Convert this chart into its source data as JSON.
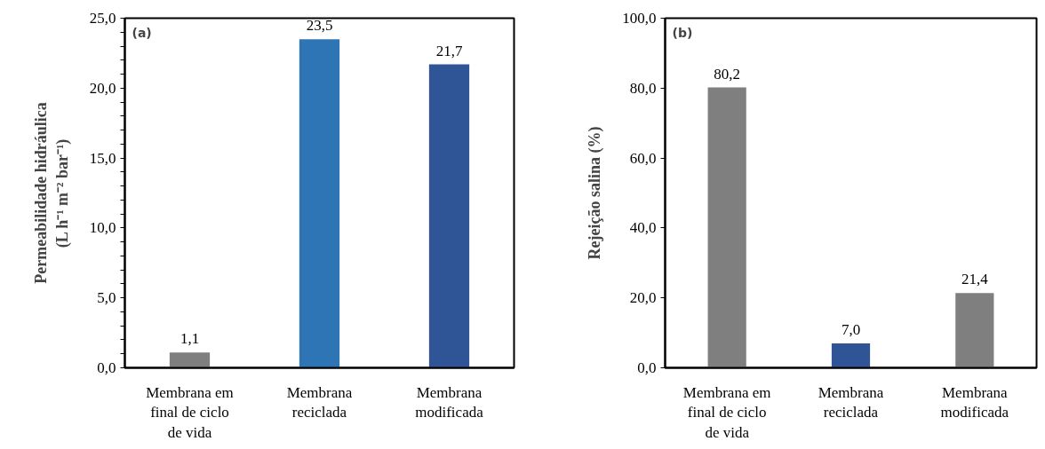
{
  "chart_data": [
    {
      "type": "bar",
      "ylabel": "Permeabilidade hidráulica\n(L h⁻¹ m⁻² bar⁻¹)",
      "annotations": [
        "(a)"
      ],
      "categories": [
        "Membrana em\nfinal de ciclo\nde vida",
        "Membrana\nreciclada",
        "Membrana\nmodificada"
      ],
      "values": [
        1.1,
        23.5,
        21.7
      ],
      "colors": [
        "#7f7f7f",
        "#2e75b6",
        "#2f5597"
      ],
      "value_labels": [
        "1,1",
        "23,5",
        "21,7"
      ],
      "ylim": [
        0,
        25
      ],
      "yticks": [
        {
          "value": 0,
          "label": "0,0"
        },
        {
          "value": 5,
          "label": "5,0"
        },
        {
          "value": 10,
          "label": "10,0"
        },
        {
          "value": 15,
          "label": "15,0"
        },
        {
          "value": 20,
          "label": "20,0"
        },
        {
          "value": 25,
          "label": "25,0"
        },
        {
          "value": 1,
          "label": null
        },
        {
          "value": 2,
          "label": null
        },
        {
          "value": 3,
          "label": null
        },
        {
          "value": 4,
          "label": null
        },
        {
          "value": 6,
          "label": null
        },
        {
          "value": 7,
          "label": null
        },
        {
          "value": 8,
          "label": null
        },
        {
          "value": 9,
          "label": null
        },
        {
          "value": 11,
          "label": null
        },
        {
          "value": 12,
          "label": null
        },
        {
          "value": 13,
          "label": null
        },
        {
          "value": 14,
          "label": null
        },
        {
          "value": 16,
          "label": null
        },
        {
          "value": 17,
          "label": null
        },
        {
          "value": 18,
          "label": null
        },
        {
          "value": 19,
          "label": null
        },
        {
          "value": 21,
          "label": null
        },
        {
          "value": 22,
          "label": null
        },
        {
          "value": 23,
          "label": null
        },
        {
          "value": 24,
          "label": null
        }
      ]
    },
    {
      "type": "bar",
      "ylabel": "Rejeição salina (%)",
      "annotations": [
        "(b)"
      ],
      "categories": [
        "Membrana em\nfinal de ciclo\nde vida",
        "Membrana\nreciclada",
        "Membrana\nmodificada"
      ],
      "values": [
        80.2,
        7.0,
        21.4
      ],
      "colors": [
        "#7f7f7f",
        "#2f5597",
        "#7f7f7f"
      ],
      "value_labels": [
        "80,2",
        "7,0",
        "21,4"
      ],
      "ylim": [
        0,
        100
      ],
      "yticks": [
        {
          "value": 0,
          "label": "0,0"
        },
        {
          "value": 20,
          "label": "20,0"
        },
        {
          "value": 40,
          "label": "40,0"
        },
        {
          "value": 60,
          "label": "60,0"
        },
        {
          "value": 80,
          "label": "80,0"
        },
        {
          "value": 100,
          "label": "100,0"
        }
      ]
    }
  ]
}
